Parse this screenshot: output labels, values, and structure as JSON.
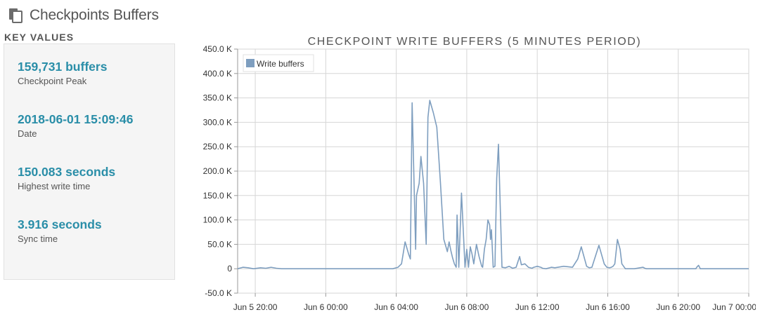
{
  "header": {
    "title": "Checkpoints Buffers",
    "icon": "copy-icon"
  },
  "key_values": {
    "title": "KEY VALUES",
    "items": [
      {
        "value": "159,731 buffers",
        "label": "Checkpoint Peak"
      },
      {
        "value": "2018-06-01 15:09:46",
        "label": "Date"
      },
      {
        "value": "150.083 seconds",
        "label": "Highest write time"
      },
      {
        "value": "3.916 seconds",
        "label": "Sync time"
      }
    ]
  },
  "colors": {
    "accent": "#2a8ea8",
    "series": "#7e9ebf"
  },
  "chart_data": {
    "type": "line",
    "title": "CHECKPOINT WRITE BUFFERS (5 MINUTES PERIOD)",
    "legend": "top-left",
    "grid": true,
    "xlabel": "",
    "ylabel": "",
    "ylim": [
      -50000,
      450000
    ],
    "yticks": [
      {
        "value": 450000,
        "label": "450.0 K"
      },
      {
        "value": 400000,
        "label": "400.0 K"
      },
      {
        "value": 350000,
        "label": "350.0 K"
      },
      {
        "value": 300000,
        "label": "300.0 K"
      },
      {
        "value": 250000,
        "label": "250.0 K"
      },
      {
        "value": 200000,
        "label": "200.0 K"
      },
      {
        "value": 150000,
        "label": "150.0 K"
      },
      {
        "value": 100000,
        "label": "100.0 K"
      },
      {
        "value": 50000,
        "label": "50.0 K"
      },
      {
        "value": 0,
        "label": "0"
      },
      {
        "value": -50000,
        "label": "-50.0 K"
      }
    ],
    "xlim": [
      "Jun 5 19:00",
      "Jun 7 00:00"
    ],
    "xticks": [
      "Jun 5 20:00",
      "Jun 6 00:00",
      "Jun 6 04:00",
      "Jun 6 08:00",
      "Jun 6 12:00",
      "Jun 6 16:00",
      "Jun 6 20:00",
      "Jun 7 00:00"
    ],
    "xticks_hours": [
      20,
      24,
      28,
      32,
      36,
      40,
      44,
      48
    ],
    "xlim_hours": [
      19,
      48
    ],
    "series": [
      {
        "name": "Write buffers",
        "x_hours": [
          19,
          19.3,
          19.6,
          19.9,
          20.3,
          20.6,
          20.9,
          21.2,
          21.5,
          22,
          24,
          27,
          27.8,
          28.1,
          28.3,
          28.5,
          28.7,
          28.8,
          28.9,
          29.0,
          29.1,
          29.15,
          29.3,
          29.4,
          29.55,
          29.7,
          29.8,
          29.9,
          30.1,
          30.3,
          30.5,
          30.7,
          30.9,
          31.0,
          31.1,
          31.2,
          31.3,
          31.4,
          31.45,
          31.5,
          31.55,
          31.7,
          31.8,
          31.9,
          32.0,
          32.1,
          32.2,
          32.3,
          32.4,
          32.55,
          32.7,
          32.85,
          32.9,
          33.0,
          33.1,
          33.2,
          33.3,
          33.35,
          33.4,
          33.5,
          33.6,
          33.7,
          33.8,
          34.0,
          34.2,
          34.4,
          34.5,
          34.6,
          34.8,
          35.0,
          35.1,
          35.3,
          35.5,
          35.7,
          35.8,
          36.0,
          36.2,
          36.3,
          36.5,
          36.8,
          37.0,
          37.5,
          38.0,
          38.3,
          38.5,
          38.8,
          38.95,
          39.1,
          39.5,
          39.8,
          39.95,
          40.1,
          40.2,
          40.3,
          40.4,
          40.55,
          40.7,
          40.8,
          41.0,
          41.5,
          42.0,
          42.1,
          42.2,
          42.4,
          43.0,
          44.0,
          45.0,
          45.05,
          45.15,
          45.25,
          46.0,
          47.0,
          48.0
        ],
        "values": [
          0,
          3000,
          2000,
          0,
          2000,
          1000,
          3000,
          1000,
          0,
          0,
          0,
          0,
          0,
          3000,
          10000,
          55000,
          30000,
          20000,
          340000,
          190000,
          40000,
          150000,
          175000,
          230000,
          175000,
          50000,
          310000,
          345000,
          320000,
          290000,
          180000,
          60000,
          35000,
          55000,
          37000,
          22000,
          10000,
          3000,
          110000,
          60000,
          3000,
          155000,
          80000,
          3000,
          40000,
          3000,
          45000,
          30000,
          10000,
          50000,
          25000,
          5000,
          3000,
          40000,
          60000,
          100000,
          90000,
          60000,
          80000,
          3000,
          5000,
          185000,
          255000,
          3000,
          2000,
          5000,
          3000,
          1000,
          3000,
          25000,
          8000,
          10000,
          3000,
          1000,
          3000,
          5000,
          3000,
          1000,
          0,
          3000,
          2000,
          5000,
          3000,
          20000,
          45000,
          5000,
          2000,
          3000,
          48000,
          10000,
          3000,
          2000,
          3000,
          5000,
          10000,
          60000,
          40000,
          10000,
          0,
          0,
          3000,
          1000,
          0,
          0,
          0,
          0,
          0,
          3000,
          7000,
          0,
          0,
          0,
          0
        ]
      }
    ]
  }
}
